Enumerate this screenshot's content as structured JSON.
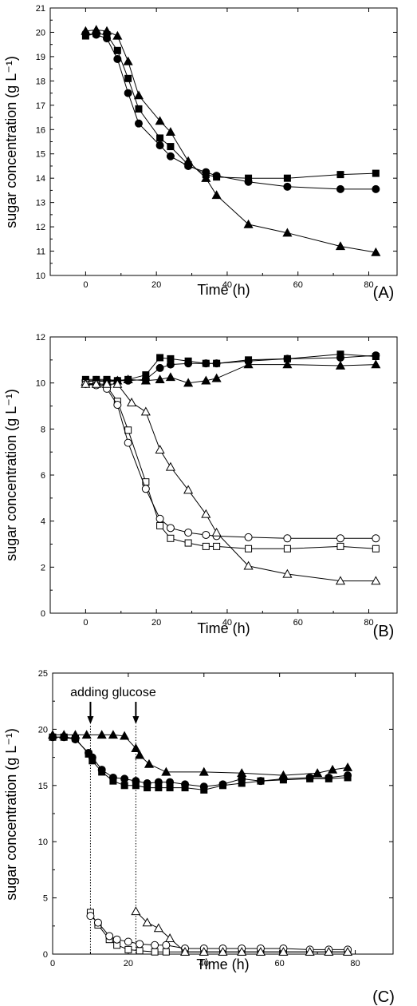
{
  "chart_data": [
    {
      "type": "line",
      "panel_label": "(A)",
      "xlabel": "Time (h)",
      "ylabel": "sugar concentration (g L⁻¹)",
      "xlim": [
        -10,
        88
      ],
      "ylim": [
        10,
        21
      ],
      "xticks": [
        0,
        20,
        40,
        60,
        80
      ],
      "yticks": [
        10,
        11,
        12,
        13,
        14,
        15,
        16,
        17,
        18,
        19,
        20,
        21
      ],
      "series": [
        {
          "marker": "square",
          "filled": true,
          "x": [
            0,
            3,
            6,
            9,
            12,
            15,
            21,
            24,
            29,
            34,
            37,
            46,
            57,
            72,
            82
          ],
          "y": [
            19.85,
            19.95,
            19.9,
            19.25,
            18.1,
            16.85,
            15.65,
            15.3,
            14.55,
            14.15,
            14.05,
            14.0,
            14.0,
            14.15,
            14.2
          ]
        },
        {
          "marker": "circle",
          "filled": true,
          "x": [
            0,
            3,
            6,
            9,
            12,
            15,
            21,
            24,
            29,
            34,
            37,
            46,
            57,
            72,
            82
          ],
          "y": [
            19.95,
            19.9,
            19.75,
            18.9,
            17.5,
            16.25,
            15.35,
            14.9,
            14.5,
            14.25,
            14.1,
            13.85,
            13.65,
            13.55,
            13.55
          ]
        },
        {
          "marker": "triangle",
          "filled": true,
          "x": [
            0,
            3,
            6,
            9,
            12,
            15,
            21,
            24,
            29,
            34,
            37,
            46,
            57,
            72,
            82
          ],
          "y": [
            20.05,
            20.1,
            20.05,
            19.85,
            18.8,
            17.4,
            16.35,
            15.9,
            14.7,
            14.0,
            13.3,
            12.1,
            11.75,
            11.2,
            10.95
          ]
        }
      ]
    },
    {
      "type": "line",
      "panel_label": "(B)",
      "xlabel": "Time (h)",
      "ylabel": "sugar concentration (g L⁻¹)",
      "xlim": [
        -10,
        88
      ],
      "ylim": [
        0,
        12
      ],
      "xticks": [
        0,
        20,
        40,
        60,
        80
      ],
      "yticks": [
        0,
        2,
        4,
        6,
        8,
        10,
        12
      ],
      "series": [
        {
          "marker": "square",
          "filled": true,
          "x": [
            0,
            3,
            6,
            9,
            12,
            17,
            21,
            24,
            29,
            34,
            37,
            46,
            57,
            72,
            82
          ],
          "y": [
            10.15,
            10.15,
            10.15,
            10.1,
            10.15,
            10.35,
            11.1,
            11.05,
            10.95,
            10.85,
            10.85,
            11.0,
            11.05,
            11.25,
            11.15
          ]
        },
        {
          "marker": "circle",
          "filled": true,
          "x": [
            0,
            3,
            6,
            9,
            12,
            17,
            21,
            24,
            29,
            34,
            37,
            46,
            57,
            72,
            82
          ],
          "y": [
            10.1,
            10.1,
            10.1,
            10.1,
            10.1,
            10.15,
            10.65,
            10.8,
            10.85,
            10.85,
            10.85,
            10.95,
            11.05,
            11.1,
            11.2
          ]
        },
        {
          "marker": "triangle",
          "filled": true,
          "x": [
            0,
            3,
            6,
            9,
            12,
            17,
            21,
            24,
            29,
            34,
            37,
            46,
            57,
            72,
            82
          ],
          "y": [
            10.05,
            10.1,
            10.05,
            10.1,
            10.15,
            10.1,
            10.15,
            10.25,
            10.0,
            10.1,
            10.2,
            10.8,
            10.8,
            10.75,
            10.8
          ]
        },
        {
          "marker": "square",
          "filled": false,
          "x": [
            0,
            3,
            6,
            9,
            12,
            17,
            21,
            24,
            29,
            34,
            37,
            46,
            57,
            72,
            82
          ],
          "y": [
            10.0,
            9.95,
            9.85,
            9.2,
            7.95,
            5.7,
            3.8,
            3.25,
            3.05,
            2.9,
            2.9,
            2.8,
            2.8,
            2.9,
            2.8
          ]
        },
        {
          "marker": "circle",
          "filled": false,
          "x": [
            0,
            3,
            6,
            9,
            12,
            17,
            21,
            24,
            29,
            34,
            37,
            46,
            57,
            72,
            82
          ],
          "y": [
            9.95,
            9.9,
            9.75,
            9.05,
            7.4,
            5.4,
            4.1,
            3.7,
            3.5,
            3.4,
            3.35,
            3.3,
            3.25,
            3.25,
            3.25
          ]
        },
        {
          "marker": "triangle",
          "filled": false,
          "x": [
            0,
            3,
            6,
            9,
            13,
            17,
            21,
            24,
            29,
            34,
            37,
            46,
            57,
            72,
            82
          ],
          "y": [
            9.95,
            9.95,
            9.95,
            9.95,
            9.15,
            8.75,
            7.1,
            6.35,
            5.35,
            4.3,
            3.5,
            2.05,
            1.7,
            1.4,
            1.4
          ]
        }
      ]
    },
    {
      "type": "line",
      "panel_label": "(C)",
      "xlabel": "Time (h)",
      "ylabel": "sugar concentration (g L⁻¹)",
      "xlim": [
        0,
        90
      ],
      "ylim": [
        0,
        25
      ],
      "xticks": [
        0,
        20,
        40,
        60,
        80
      ],
      "yticks": [
        0,
        5,
        10,
        15,
        20,
        25
      ],
      "annotation": {
        "text": "adding glucose",
        "arrow_x": [
          10,
          22
        ]
      },
      "series": [
        {
          "marker": "square",
          "filled": true,
          "x": [
            0,
            3,
            6,
            9.5,
            10.5,
            13,
            16,
            19,
            22,
            25,
            28,
            31,
            35,
            40,
            45,
            50,
            55,
            61,
            68,
            73,
            78
          ],
          "y": [
            19.3,
            19.3,
            19.2,
            17.8,
            17.2,
            16.2,
            15.4,
            15.0,
            15.0,
            14.8,
            14.8,
            14.8,
            14.8,
            14.6,
            15.0,
            15.2,
            15.4,
            15.5,
            15.6,
            15.6,
            15.7
          ]
        },
        {
          "marker": "circle",
          "filled": true,
          "x": [
            0,
            3,
            6,
            9.5,
            10.5,
            13,
            16,
            19,
            22,
            25,
            28,
            31,
            35,
            40,
            45,
            50,
            55,
            61,
            68,
            73,
            78
          ],
          "y": [
            19.3,
            19.3,
            19.1,
            17.9,
            17.5,
            16.4,
            15.7,
            15.6,
            15.4,
            15.2,
            15.3,
            15.3,
            15.1,
            14.9,
            15.1,
            15.6,
            15.4,
            15.6,
            15.7,
            15.7,
            15.9
          ]
        },
        {
          "marker": "triangle",
          "filled": true,
          "x": [
            0,
            3,
            6,
            9,
            13,
            16,
            19,
            22,
            23,
            25.5,
            30,
            40,
            50,
            61,
            70,
            74,
            78
          ],
          "y": [
            19.5,
            19.5,
            19.5,
            19.5,
            19.5,
            19.5,
            19.4,
            18.3,
            17.7,
            16.9,
            16.2,
            16.2,
            16.1,
            15.9,
            16.1,
            16.4,
            16.6
          ]
        },
        {
          "marker": "square",
          "filled": false,
          "x": [
            10,
            12,
            15,
            17,
            20,
            23,
            27,
            30,
            35,
            40,
            45,
            50,
            55,
            61,
            68,
            73,
            78
          ],
          "y": [
            3.7,
            2.6,
            1.3,
            0.8,
            0.4,
            0.3,
            0.2,
            0.2,
            0.2,
            0.2,
            0.2,
            0.2,
            0.2,
            0.2,
            0.2,
            0.2,
            0.2
          ]
        },
        {
          "marker": "circle",
          "filled": false,
          "x": [
            10,
            12,
            15,
            17,
            20,
            23,
            27,
            30,
            35,
            40,
            45,
            50,
            55,
            61,
            68,
            73,
            78
          ],
          "y": [
            3.4,
            2.8,
            1.6,
            1.3,
            1.1,
            0.9,
            0.8,
            0.8,
            0.5,
            0.5,
            0.5,
            0.5,
            0.5,
            0.5,
            0.4,
            0.4,
            0.4
          ]
        },
        {
          "marker": "triangle",
          "filled": false,
          "x": [
            22,
            25,
            28,
            31,
            35,
            40,
            45,
            50,
            55,
            61,
            68,
            73,
            78
          ],
          "y": [
            3.8,
            2.8,
            2.3,
            1.4,
            0.2,
            0.2,
            0.2,
            0.2,
            0.2,
            0.2,
            0.2,
            0.2,
            0.2
          ]
        }
      ]
    }
  ]
}
